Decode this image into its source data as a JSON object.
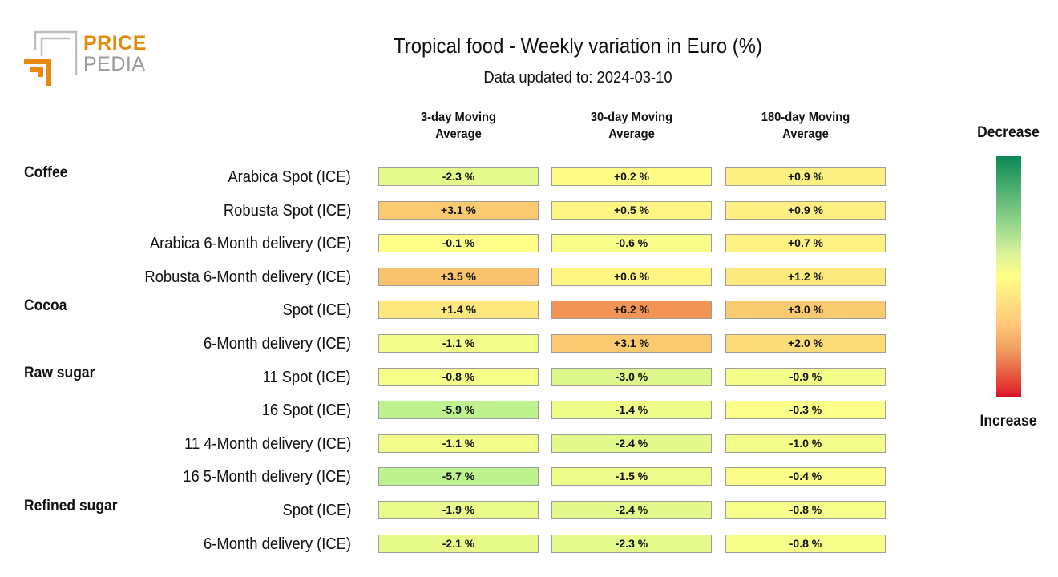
{
  "logo": {
    "line1": "PRICE",
    "line2": "PEDIA",
    "accent_color": "#e8890f",
    "grey_color": "#9a9a9a"
  },
  "chart_data": {
    "type": "heatmap",
    "title": "Tropical food - Weekly variation in Euro (%)",
    "subtitle": "Data updated to: 2024-03-10",
    "columns": [
      "3-day Moving Average",
      "30-day Moving Average",
      "180-day Moving Average"
    ],
    "legend": {
      "top_label": "Decrease",
      "bottom_label": "Increase",
      "top_color": "#0a8a55",
      "mid_color": "#ffff86",
      "bottom_color": "#d4102a"
    },
    "groups": [
      {
        "name": "Coffee",
        "rows": [
          {
            "label": "Arabica Spot (ICE)",
            "values": [
              -2.3,
              0.2,
              0.9
            ]
          },
          {
            "label": "Robusta Spot (ICE)",
            "values": [
              3.1,
              0.5,
              0.9
            ]
          },
          {
            "label": "Arabica 6-Month delivery (ICE)",
            "values": [
              -0.1,
              -0.6,
              0.7
            ]
          },
          {
            "label": "Robusta 6-Month delivery (ICE)",
            "values": [
              3.5,
              0.6,
              1.2
            ]
          }
        ]
      },
      {
        "name": "Cocoa",
        "rows": [
          {
            "label": "Spot (ICE)",
            "values": [
              1.4,
              6.2,
              3.0
            ]
          },
          {
            "label": "6-Month delivery (ICE)",
            "values": [
              -1.1,
              3.1,
              2.0
            ]
          }
        ]
      },
      {
        "name": "Raw sugar",
        "rows": [
          {
            "label": "11 Spot (ICE)",
            "values": [
              -0.8,
              -3.0,
              -0.9
            ]
          },
          {
            "label": "16 Spot (ICE)",
            "values": [
              -5.9,
              -1.4,
              -0.3
            ]
          },
          {
            "label": "11 4-Month delivery (ICE)",
            "values": [
              -1.1,
              -2.4,
              -1.0
            ]
          },
          {
            "label": "16 5-Month delivery (ICE)",
            "values": [
              -5.7,
              -1.5,
              -0.4
            ]
          }
        ]
      },
      {
        "name": "Refined sugar",
        "rows": [
          {
            "label": "Spot (ICE)",
            "values": [
              -1.9,
              -2.4,
              -0.8
            ]
          },
          {
            "label": "6-Month delivery (ICE)",
            "values": [
              -2.1,
              -2.3,
              -0.8
            ]
          }
        ]
      }
    ]
  }
}
